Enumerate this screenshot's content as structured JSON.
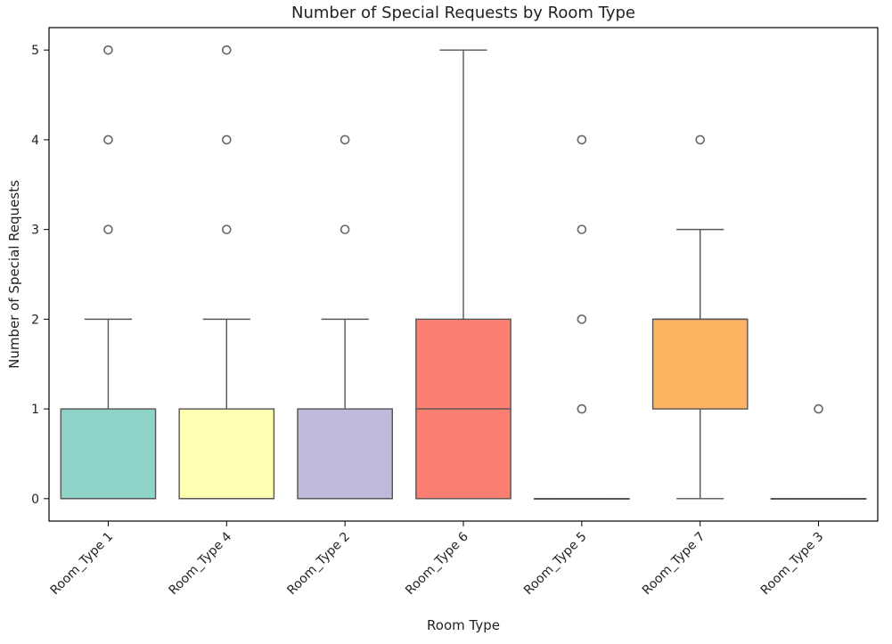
{
  "chart_data": {
    "type": "box",
    "title": "Number of Special Requests by Room Type",
    "xlabel": "Room Type",
    "ylabel": "Number of Special Requests",
    "ylim": [
      -0.25,
      5.25
    ],
    "yticks": [
      0,
      1,
      2,
      3,
      4,
      5
    ],
    "grid": false,
    "categories": [
      "Room_Type 1",
      "Room_Type 4",
      "Room_Type 2",
      "Room_Type 6",
      "Room_Type 5",
      "Room_Type 7",
      "Room_Type 3"
    ],
    "boxes": [
      {
        "category": "Room_Type 1",
        "q1": 0,
        "median": 0,
        "q3": 1,
        "whisker_low": 0,
        "whisker_high": 2,
        "outliers": [
          3,
          4,
          5
        ],
        "color": "#8dd3c7"
      },
      {
        "category": "Room_Type 4",
        "q1": 0,
        "median": 0,
        "q3": 1,
        "whisker_low": 0,
        "whisker_high": 2,
        "outliers": [
          3,
          4,
          5
        ],
        "color": "#ffffb3"
      },
      {
        "category": "Room_Type 2",
        "q1": 0,
        "median": 0,
        "q3": 1,
        "whisker_low": 0,
        "whisker_high": 2,
        "outliers": [
          3,
          4
        ],
        "color": "#bebada"
      },
      {
        "category": "Room_Type 6",
        "q1": 0,
        "median": 1,
        "q3": 2,
        "whisker_low": 0,
        "whisker_high": 5,
        "outliers": [],
        "color": "#fb8072"
      },
      {
        "category": "Room_Type 5",
        "q1": 0,
        "median": 0,
        "q3": 0,
        "whisker_low": 0,
        "whisker_high": 0,
        "outliers": [
          1,
          2,
          3,
          4
        ],
        "color": "#80b1d3"
      },
      {
        "category": "Room_Type 7",
        "q1": 1,
        "median": 2,
        "q3": 2,
        "whisker_low": 0,
        "whisker_high": 3,
        "outliers": [
          4
        ],
        "color": "#fdb462"
      },
      {
        "category": "Room_Type 3",
        "q1": 0,
        "median": 0,
        "q3": 0,
        "whisker_low": 0,
        "whisker_high": 0,
        "outliers": [
          1
        ],
        "color": "#b3de69"
      }
    ]
  }
}
